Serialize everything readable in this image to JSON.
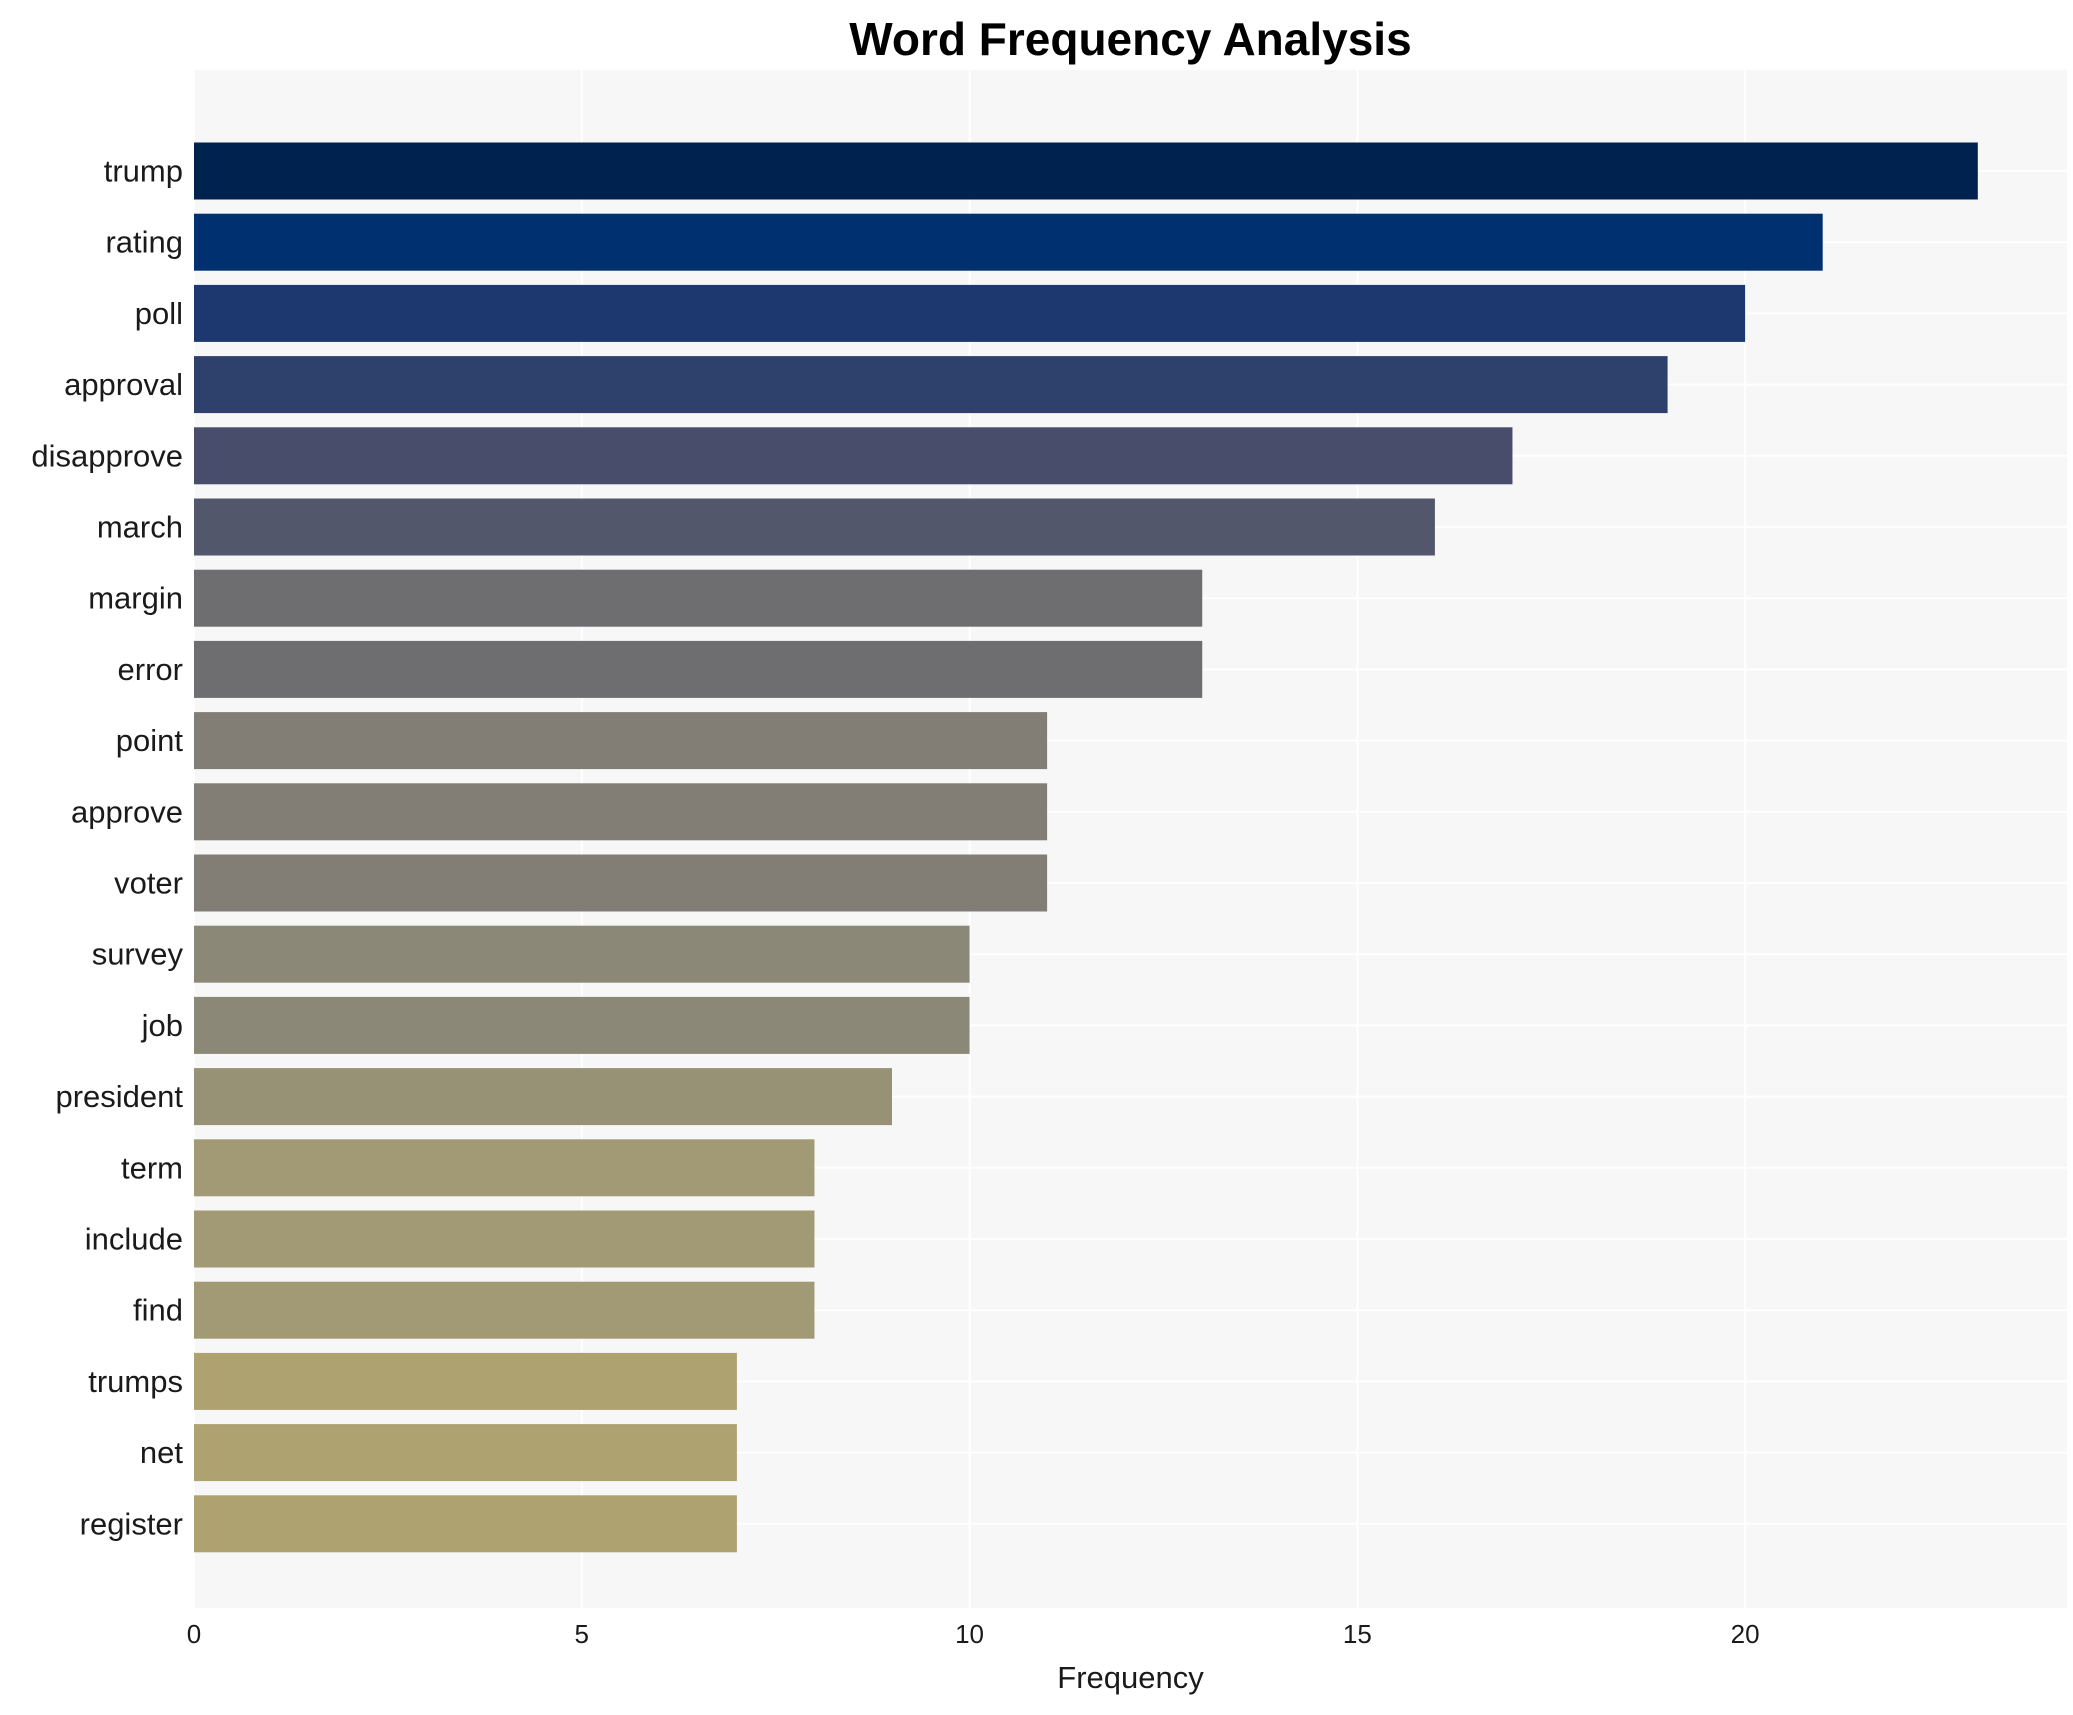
{
  "chart_data": {
    "type": "bar",
    "orientation": "horizontal",
    "title": "Word Frequency Analysis",
    "xlabel": "Frequency",
    "ylabel": "",
    "xlim": [
      0,
      24.15
    ],
    "xticks": [
      0,
      5,
      10,
      15,
      20
    ],
    "grid": true,
    "legend": "none",
    "categories": [
      "trump",
      "rating",
      "poll",
      "approval",
      "disapprove",
      "march",
      "margin",
      "error",
      "point",
      "approve",
      "voter",
      "survey",
      "job",
      "president",
      "term",
      "include",
      "find",
      "trumps",
      "net",
      "register"
    ],
    "values": [
      23,
      21,
      20,
      19,
      17,
      16,
      13,
      13,
      11,
      11,
      11,
      10,
      10,
      9,
      8,
      8,
      8,
      7,
      7,
      7
    ],
    "colors": [
      "#00224e",
      "#003070",
      "#1c386e",
      "#2e416c",
      "#474d6a",
      "#53576c",
      "#6e6e71",
      "#6e6e71",
      "#827e75",
      "#827e75",
      "#827e75",
      "#8b8878",
      "#8b8878",
      "#979175",
      "#a29a74",
      "#a29a74",
      "#a29a74",
      "#ada270",
      "#ada270",
      "#ada270"
    ]
  },
  "style": {
    "plot_background": "#f7f7f8",
    "grid_color": "#ffffff",
    "text_color": "#1a1a1a",
    "title_color": "#000000"
  }
}
